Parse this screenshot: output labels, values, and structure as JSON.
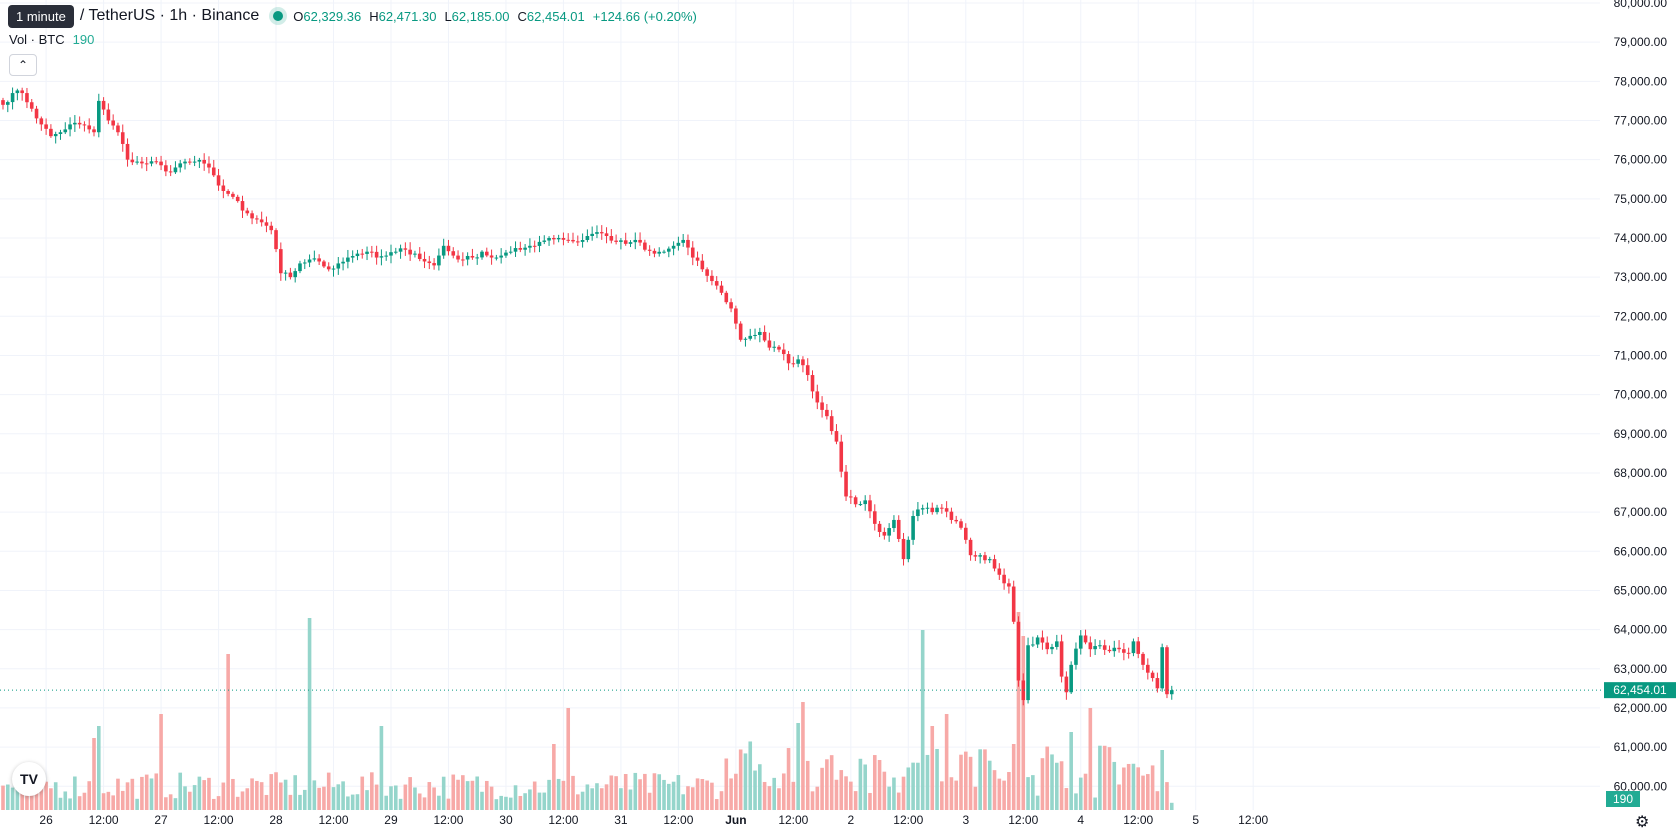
{
  "header": {
    "interval_tooltip": "1 minute",
    "symbol": "/ TetherUS · 1h · Binance",
    "ohlc": {
      "o_label": "O",
      "o": "62,329.36",
      "h_label": "H",
      "h": "62,471.30",
      "l_label": "L",
      "l": "62,185.00",
      "c_label": "C",
      "c": "62,454.01",
      "change": "+124.66 (+0.20%)"
    },
    "volume_label": "Vol · BTC",
    "volume_value": "190"
  },
  "colors": {
    "up": "#089981",
    "down": "#f23645",
    "up_vol": "#95d5cb",
    "down_vol": "#f7a9a7"
  },
  "icons": {
    "collapse": "chevron-up-icon",
    "logo": "tradingview-logo-icon",
    "settings": "gear-icon"
  },
  "chart_data": {
    "type": "candlestick",
    "price_axis": {
      "min": 59700,
      "max": 80000,
      "ticks": [
        80000,
        79000,
        78000,
        77000,
        76000,
        75000,
        74000,
        73000,
        72000,
        71000,
        70000,
        69000,
        68000,
        67000,
        66000,
        65000,
        64000,
        63000,
        62000,
        61000,
        60000
      ],
      "tick_labels": [
        "80,000.00",
        "79,000.00",
        "78,000.00",
        "77,000.00",
        "76,000.00",
        "75,000.00",
        "74,000.00",
        "73,000.00",
        "72,000.00",
        "71,000.00",
        "70,000.00",
        "69,000.00",
        "68,000.00",
        "67,000.00",
        "66,000.00",
        "65,000.00",
        "64,000.00",
        "63,000.00",
        "62,000.00",
        "61,000.00",
        "60,000.00"
      ]
    },
    "time_axis": {
      "hours_visible": 348,
      "first_hour": "May 25 15:00",
      "ticks": [
        {
          "hour": 9,
          "label": "26"
        },
        {
          "hour": 21,
          "label": "12:00"
        },
        {
          "hour": 33,
          "label": "27"
        },
        {
          "hour": 45,
          "label": "12:00"
        },
        {
          "hour": 57,
          "label": "28"
        },
        {
          "hour": 69,
          "label": "12:00"
        },
        {
          "hour": 81,
          "label": "29"
        },
        {
          "hour": 93,
          "label": "12:00"
        },
        {
          "hour": 105,
          "label": "30"
        },
        {
          "hour": 117,
          "label": "12:00"
        },
        {
          "hour": 129,
          "label": "31"
        },
        {
          "hour": 141,
          "label": "12:00"
        },
        {
          "hour": 153,
          "label": "Jun"
        },
        {
          "hour": 165,
          "label": "12:00"
        },
        {
          "hour": 177,
          "label": "2"
        },
        {
          "hour": 189,
          "label": "12:00"
        },
        {
          "hour": 201,
          "label": "3"
        },
        {
          "hour": 213,
          "label": "12:00"
        },
        {
          "hour": 225,
          "label": "4"
        },
        {
          "hour": 237,
          "label": "12:00"
        },
        {
          "hour": 249,
          "label": "5"
        },
        {
          "hour": 261,
          "label": "12:00"
        }
      ]
    },
    "close_keypoints": [
      [
        0,
        77400
      ],
      [
        2,
        77700
      ],
      [
        4,
        77700
      ],
      [
        6,
        77300
      ],
      [
        8,
        76900
      ],
      [
        10,
        76600
      ],
      [
        12,
        76700
      ],
      [
        14,
        76900
      ],
      [
        16,
        76900
      ],
      [
        19,
        76700
      ],
      [
        20,
        77500
      ],
      [
        22,
        77000
      ],
      [
        24,
        76700
      ],
      [
        26,
        76000
      ],
      [
        28,
        75950
      ],
      [
        30,
        75900
      ],
      [
        32,
        75950
      ],
      [
        34,
        75700
      ],
      [
        36,
        75800
      ],
      [
        38,
        75950
      ],
      [
        40,
        75950
      ],
      [
        42,
        75900
      ],
      [
        44,
        75600
      ],
      [
        46,
        75200
      ],
      [
        48,
        75050
      ],
      [
        50,
        74700
      ],
      [
        52,
        74500
      ],
      [
        54,
        74400
      ],
      [
        56,
        74200
      ],
      [
        58,
        73100
      ],
      [
        60,
        73000
      ],
      [
        62,
        73350
      ],
      [
        64,
        73450
      ],
      [
        66,
        73400
      ],
      [
        68,
        73200
      ],
      [
        70,
        73350
      ],
      [
        72,
        73500
      ],
      [
        74,
        73600
      ],
      [
        76,
        73650
      ],
      [
        78,
        73500
      ],
      [
        80,
        73550
      ],
      [
        82,
        73650
      ],
      [
        84,
        73700
      ],
      [
        86,
        73600
      ],
      [
        88,
        73400
      ],
      [
        90,
        73300
      ],
      [
        92,
        73800
      ],
      [
        94,
        73550
      ],
      [
        96,
        73450
      ],
      [
        98,
        73500
      ],
      [
        100,
        73650
      ],
      [
        102,
        73500
      ],
      [
        104,
        73550
      ],
      [
        106,
        73650
      ],
      [
        108,
        73700
      ],
      [
        110,
        73800
      ],
      [
        112,
        73900
      ],
      [
        114,
        74000
      ],
      [
        116,
        74000
      ],
      [
        118,
        73950
      ],
      [
        120,
        73900
      ],
      [
        122,
        74050
      ],
      [
        124,
        74150
      ],
      [
        126,
        74050
      ],
      [
        128,
        73900
      ],
      [
        130,
        73850
      ],
      [
        132,
        73950
      ],
      [
        134,
        73700
      ],
      [
        136,
        73600
      ],
      [
        138,
        73650
      ],
      [
        140,
        73800
      ],
      [
        142,
        73950
      ],
      [
        144,
        73500
      ],
      [
        146,
        73200
      ],
      [
        148,
        72900
      ],
      [
        150,
        72600
      ],
      [
        152,
        72200
      ],
      [
        154,
        71400
      ],
      [
        156,
        71500
      ],
      [
        158,
        71600
      ],
      [
        160,
        71200
      ],
      [
        162,
        71150
      ],
      [
        164,
        70800
      ],
      [
        166,
        70900
      ],
      [
        168,
        70500
      ],
      [
        170,
        69800
      ],
      [
        172,
        69450
      ],
      [
        174,
        68800
      ],
      [
        176,
        67400
      ],
      [
        178,
        67200
      ],
      [
        180,
        67300
      ],
      [
        182,
        66700
      ],
      [
        184,
        66400
      ],
      [
        186,
        66800
      ],
      [
        188,
        65800
      ],
      [
        190,
        66900
      ],
      [
        192,
        67100
      ],
      [
        194,
        67000
      ],
      [
        196,
        67100
      ],
      [
        198,
        66800
      ],
      [
        200,
        66600
      ],
      [
        202,
        65900
      ],
      [
        204,
        65900
      ],
      [
        206,
        65800
      ],
      [
        208,
        65400
      ],
      [
        210,
        65100
      ],
      [
        211,
        64200
      ],
      [
        212,
        62700
      ],
      [
        213,
        62200
      ],
      [
        214,
        63600
      ],
      [
        216,
        63800
      ],
      [
        218,
        63500
      ],
      [
        220,
        63700
      ],
      [
        221,
        62800
      ],
      [
        222,
        62400
      ],
      [
        223,
        63100
      ],
      [
        225,
        63850
      ],
      [
        227,
        63500
      ],
      [
        229,
        63600
      ],
      [
        231,
        63450
      ],
      [
        233,
        63500
      ],
      [
        235,
        63400
      ],
      [
        236,
        63700
      ],
      [
        238,
        63100
      ],
      [
        239,
        62900
      ],
      [
        241,
        62500
      ],
      [
        242,
        63550
      ],
      [
        243,
        62350
      ],
      [
        244,
        62454
      ]
    ],
    "volume": {
      "max": 300,
      "last": 190,
      "spikes": [
        [
          19,
          120
        ],
        [
          20,
          140
        ],
        [
          33,
          160
        ],
        [
          47,
          260
        ],
        [
          64,
          320
        ],
        [
          79,
          140
        ],
        [
          115,
          110
        ],
        [
          118,
          170
        ],
        [
          130,
          60
        ],
        [
          166,
          145
        ],
        [
          167,
          180
        ],
        [
          192,
          300
        ],
        [
          194,
          140
        ],
        [
          197,
          160
        ],
        [
          211,
          110
        ],
        [
          212,
          330
        ],
        [
          213,
          290
        ],
        [
          223,
          130
        ],
        [
          227,
          170
        ],
        [
          242,
          100
        ]
      ]
    },
    "last_price_label": "62,454.01",
    "last_volume_label": "190"
  }
}
